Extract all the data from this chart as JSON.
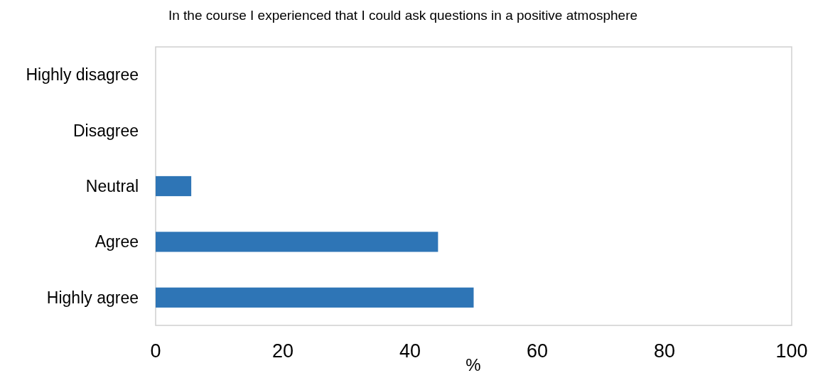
{
  "chart_data": {
    "type": "bar",
    "orientation": "horizontal",
    "title": "In the course I experienced that I could ask questions in a positive atmosphere",
    "xlabel": "%",
    "categories": [
      "Highly disagree",
      "Disagree",
      "Neutral",
      "Agree",
      "Highly agree"
    ],
    "values": [
      0,
      0,
      5.6,
      44.4,
      50
    ],
    "color": "#2e75b6",
    "xlim": [
      0,
      100
    ],
    "xticks": [
      0,
      20,
      40,
      60,
      80,
      100
    ],
    "grid": false
  }
}
